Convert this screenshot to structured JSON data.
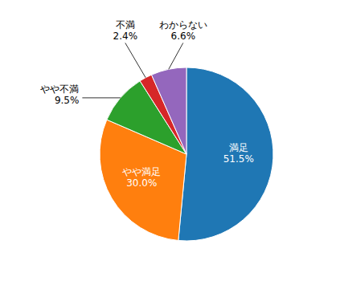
{
  "chart_data": {
    "type": "pie",
    "categories": [
      "満足",
      "やや満足",
      "やや不満",
      "不満",
      "わからない"
    ],
    "values": [
      51.5,
      30.0,
      9.5,
      2.4,
      6.6
    ],
    "value_labels": [
      "51.5%",
      "30.0%",
      "9.5%",
      "2.4%",
      "6.6%"
    ],
    "data_labels": true
  }
}
